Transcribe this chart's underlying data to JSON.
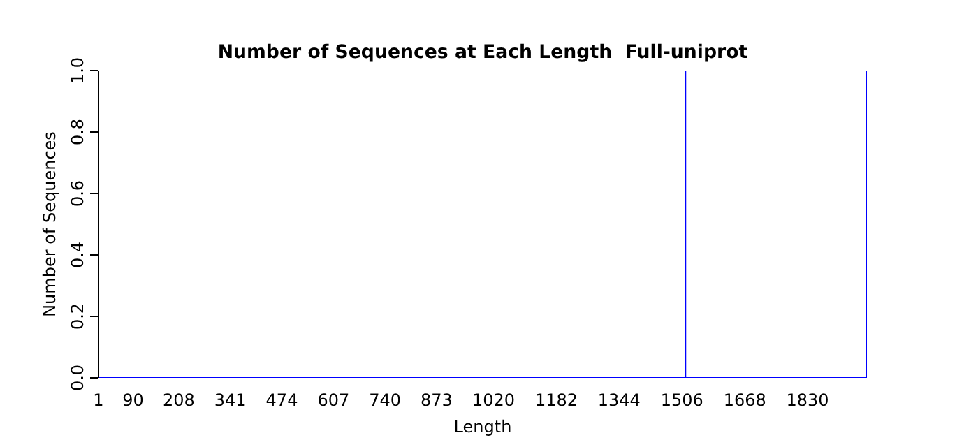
{
  "chart_data": {
    "type": "line",
    "title": "Number of Sequences at Each Length  Full-uniprot",
    "xlabel": "Length",
    "ylabel": "Number of Sequences",
    "series": [
      {
        "color": "#0000ff",
        "x": [
          1,
          1515,
          1515,
          1515,
          1983,
          1983
        ],
        "values": [
          0,
          0,
          1,
          0,
          0,
          1
        ]
      }
    ],
    "xlim": [
      1,
      1983
    ],
    "xticks": [
      1,
      90,
      208,
      341,
      474,
      607,
      740,
      873,
      1020,
      1182,
      1344,
      1506,
      1668,
      1830
    ],
    "ylim": [
      0,
      1
    ],
    "yticks": [
      {
        "value": 0,
        "label": "0.0"
      },
      {
        "value": 0.2,
        "label": "0.2"
      },
      {
        "value": 0.4,
        "label": "0.4"
      },
      {
        "value": 0.6,
        "label": "0.6"
      },
      {
        "value": 0.8,
        "label": "0.8"
      },
      {
        "value": 1,
        "label": "1.0"
      }
    ],
    "grid": false,
    "marker": "none",
    "line_style": "solid"
  }
}
